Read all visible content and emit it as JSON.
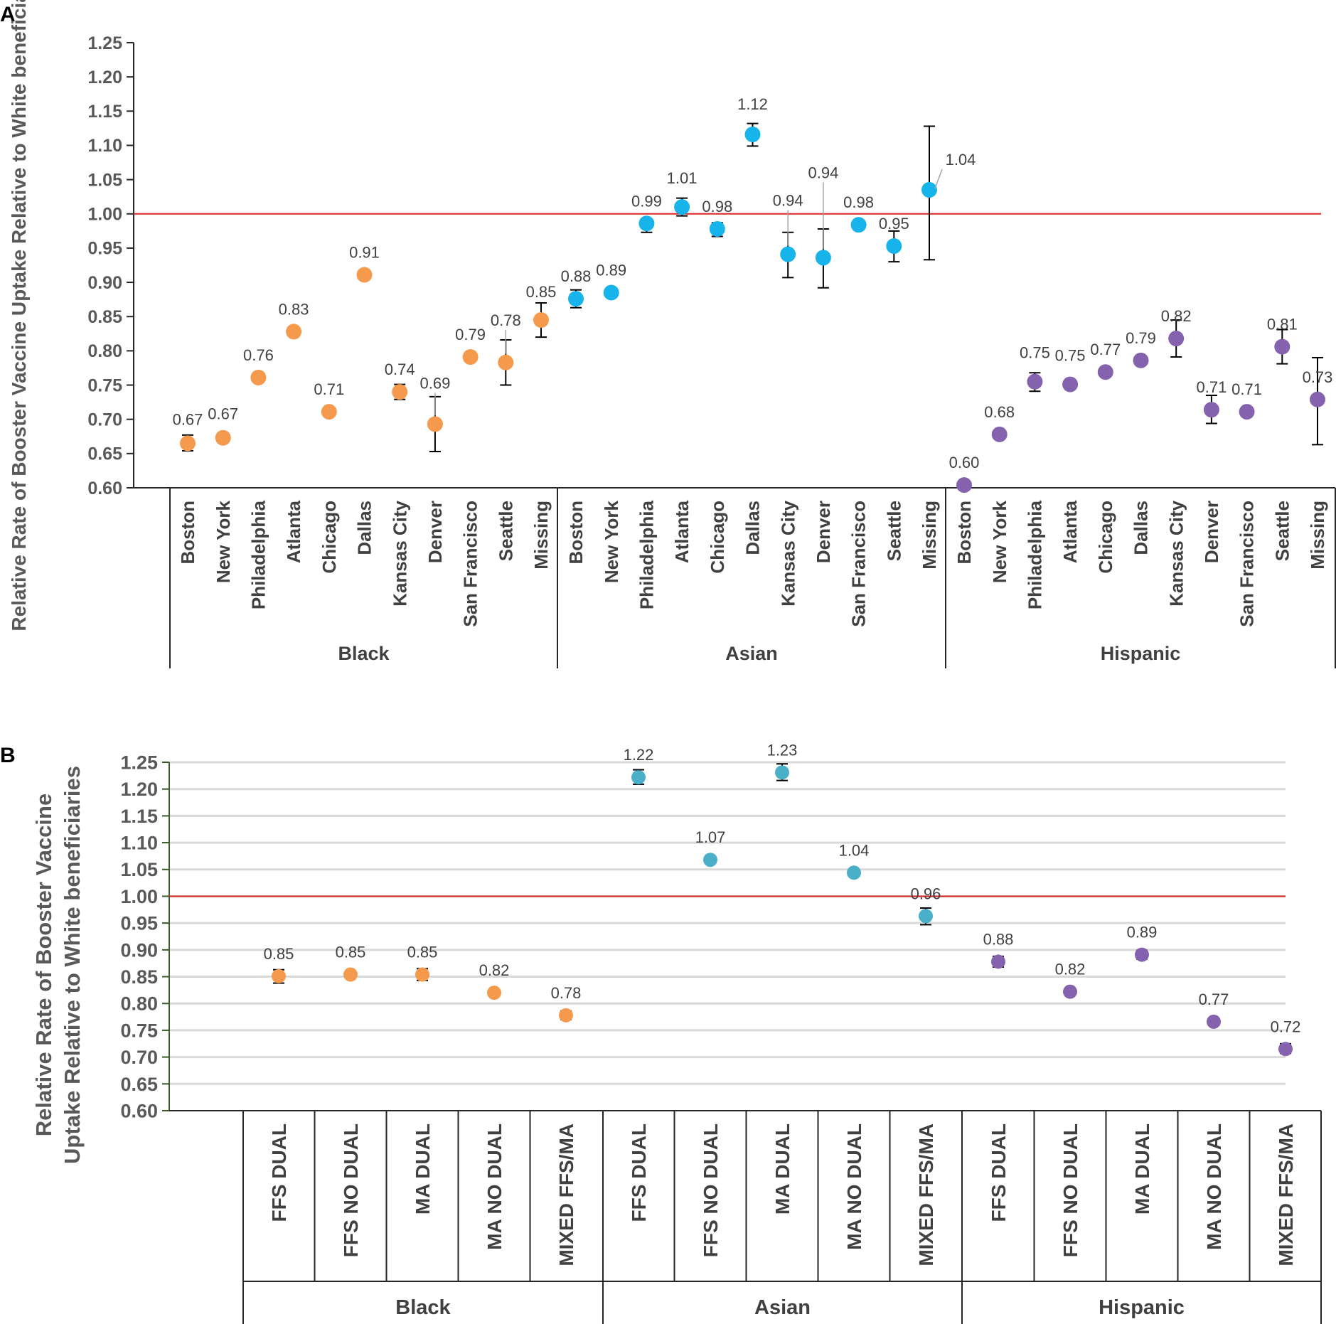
{
  "colors": {
    "Black": "#F59A4C",
    "Asian": "#16B4EA",
    "Hispanic": "#8462AE",
    "AsianB": "#4AAFC9",
    "ref": "#E02424",
    "grid": "#D9D9D9",
    "axis": "#262626"
  },
  "chart_data": [
    {
      "panel": "A",
      "type": "scatter",
      "ylabel": "Relative Rate of Booster Vaccine Uptake Relative to White beneficiaries",
      "ylim": [
        0.6,
        1.25
      ],
      "yticks": [
        "0.60",
        "0.65",
        "0.70",
        "0.75",
        "0.80",
        "0.85",
        "0.90",
        "0.95",
        "1.00",
        "1.05",
        "1.10",
        "1.15",
        "1.20",
        "1.25"
      ],
      "reference_line": 1.0,
      "groups": [
        {
          "name": "Black",
          "color_key": "Black",
          "points": [
            {
              "category": "Boston",
              "value": 0.665,
              "label": "0.67",
              "lo": 0.654,
              "hi": 0.677
            },
            {
              "category": "New York",
              "value": 0.673,
              "label": "0.67"
            },
            {
              "category": "Philadelphia",
              "value": 0.761,
              "label": "0.76"
            },
            {
              "category": "Atlanta",
              "value": 0.828,
              "label": "0.83"
            },
            {
              "category": "Chicago",
              "value": 0.711,
              "label": "0.71"
            },
            {
              "category": "Dallas",
              "value": 0.911,
              "label": "0.91"
            },
            {
              "category": "Kansas City",
              "value": 0.74,
              "label": "0.74",
              "lo": 0.729,
              "hi": 0.751
            },
            {
              "category": "Denver",
              "value": 0.693,
              "label": "0.69",
              "lo": 0.653,
              "hi": 0.733
            },
            {
              "category": "San Francisco",
              "value": 0.791,
              "label": "0.79",
              "lo": 0.786,
              "hi": 0.797
            },
            {
              "category": "Seattle",
              "value": 0.783,
              "label": "0.78",
              "lo": 0.75,
              "hi": 0.816
            },
            {
              "category": "Missing",
              "value": 0.845,
              "label": "0.85",
              "lo": 0.82,
              "hi": 0.87
            }
          ]
        },
        {
          "name": "Asian",
          "color_key": "Asian",
          "points": [
            {
              "category": "Boston",
              "value": 0.876,
              "label": "0.88",
              "lo": 0.863,
              "hi": 0.889
            },
            {
              "category": "New York",
              "value": 0.885,
              "label": "0.89",
              "lo": 0.879,
              "hi": 0.89
            },
            {
              "category": "Philadelphia",
              "value": 0.986,
              "label": "0.99",
              "lo": 0.973,
              "hi": 0.993
            },
            {
              "category": "Atlanta",
              "value": 1.01,
              "label": "1.01",
              "lo": 0.997,
              "hi": 1.023
            },
            {
              "category": "Chicago",
              "value": 0.978,
              "label": "0.98",
              "lo": 0.967,
              "hi": 0.987
            },
            {
              "category": "Dallas",
              "value": 1.116,
              "label": "1.12",
              "lo": 1.099,
              "hi": 1.132
            },
            {
              "category": "Kansas City",
              "value": 0.941,
              "label": "0.94",
              "lo": 0.907,
              "hi": 0.973
            },
            {
              "category": "Denver",
              "value": 0.936,
              "label": "0.94",
              "lo": 0.892,
              "hi": 0.978
            },
            {
              "category": "San Francisco",
              "value": 0.984,
              "label": "0.98"
            },
            {
              "category": "Seattle",
              "value": 0.953,
              "label": "0.95",
              "lo": 0.93,
              "hi": 0.975
            },
            {
              "category": "Missing",
              "value": 1.035,
              "label": "1.04",
              "lo": 0.933,
              "hi": 1.128
            }
          ]
        },
        {
          "name": "Hispanic",
          "color_key": "Hispanic",
          "points": [
            {
              "category": "Boston",
              "value": 0.604,
              "label": "0.60"
            },
            {
              "category": "New York",
              "value": 0.678,
              "label": "0.68"
            },
            {
              "category": "Philadelphia",
              "value": 0.755,
              "label": "0.75",
              "lo": 0.741,
              "hi": 0.768
            },
            {
              "category": "Atlanta",
              "value": 0.751,
              "label": "0.75"
            },
            {
              "category": "Chicago",
              "value": 0.769,
              "label": "0.77",
              "lo": 0.764,
              "hi": 0.774
            },
            {
              "category": "Dallas",
              "value": 0.786,
              "label": "0.79"
            },
            {
              "category": "Kansas City",
              "value": 0.818,
              "label": "0.82",
              "lo": 0.791,
              "hi": 0.845
            },
            {
              "category": "Denver",
              "value": 0.714,
              "label": "0.71",
              "lo": 0.694,
              "hi": 0.735
            },
            {
              "category": "San Francisco",
              "value": 0.711,
              "label": "0.71"
            },
            {
              "category": "Seattle",
              "value": 0.806,
              "label": "0.81",
              "lo": 0.781,
              "hi": 0.831
            },
            {
              "category": "Missing",
              "value": 0.729,
              "label": "0.73",
              "lo": 0.663,
              "hi": 0.79
            }
          ]
        }
      ]
    },
    {
      "panel": "B",
      "type": "scatter",
      "ylabel_lines": [
        "Relative Rate of Booster Vaccine",
        "Uptake Relative to White beneficiaries"
      ],
      "ylim": [
        0.6,
        1.25
      ],
      "yticks": [
        "0.60",
        "0.65",
        "0.70",
        "0.75",
        "0.80",
        "0.85",
        "0.90",
        "0.95",
        "1.00",
        "1.05",
        "1.10",
        "1.15",
        "1.20",
        "1.25"
      ],
      "reference_line": 1.0,
      "groups": [
        {
          "name": "Black",
          "color_key": "Black",
          "points": [
            {
              "category": "FFS DUAL",
              "value": 0.851,
              "label": "0.85",
              "lo": 0.838,
              "hi": 0.863
            },
            {
              "category": "FFS NO DUAL",
              "value": 0.854,
              "label": "0.85"
            },
            {
              "category": "MA DUAL",
              "value": 0.854,
              "label": "0.85",
              "lo": 0.843,
              "hi": 0.865
            },
            {
              "category": "MA NO DUAL",
              "value": 0.82,
              "label": "0.82"
            },
            {
              "category": "MIXED FFS/MA",
              "value": 0.778,
              "label": "0.78",
              "lo": 0.77,
              "hi": 0.786
            }
          ]
        },
        {
          "name": "Asian",
          "color_key": "AsianB",
          "points": [
            {
              "category": "FFS DUAL",
              "value": 1.222,
              "label": "1.22",
              "lo": 1.209,
              "hi": 1.236
            },
            {
              "category": "FFS NO DUAL",
              "value": 1.068,
              "label": "1.07"
            },
            {
              "category": "MA DUAL",
              "value": 1.231,
              "label": "1.23",
              "lo": 1.216,
              "hi": 1.247
            },
            {
              "category": "MA NO DUAL",
              "value": 1.044,
              "label": "1.04"
            },
            {
              "category": "MIXED FFS/MA",
              "value": 0.963,
              "label": "0.96",
              "lo": 0.947,
              "hi": 0.978
            }
          ]
        },
        {
          "name": "Hispanic",
          "color_key": "Hispanic",
          "points": [
            {
              "category": "FFS DUAL",
              "value": 0.878,
              "label": "0.88",
              "lo": 0.868,
              "hi": 0.888
            },
            {
              "category": "FFS NO DUAL",
              "value": 0.822,
              "label": "0.82"
            },
            {
              "category": "MA DUAL",
              "value": 0.891,
              "label": "0.89",
              "lo": 0.883,
              "hi": 0.899
            },
            {
              "category": "MA NO DUAL",
              "value": 0.766,
              "label": "0.77"
            },
            {
              "category": "MIXED FFS/MA",
              "value": 0.715,
              "label": "0.72",
              "lo": 0.707,
              "hi": 0.725
            }
          ]
        }
      ]
    }
  ]
}
